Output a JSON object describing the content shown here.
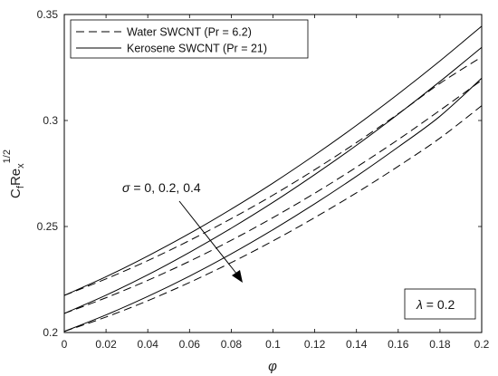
{
  "chart_data": {
    "type": "line",
    "xlabel": "φ",
    "ylabel": {
      "base": "C",
      "sub1": "f",
      "mid": "Re",
      "sub2": "x",
      "sup": "1/2"
    },
    "xlim": [
      0,
      0.2
    ],
    "ylim": [
      0.2,
      0.35
    ],
    "xticks": [
      "0",
      "0.02",
      "0.04",
      "0.06",
      "0.08",
      "0.1",
      "0.12",
      "0.14",
      "0.16",
      "0.18",
      "0.2"
    ],
    "yticks": [
      "0.2",
      "0.25",
      "0.3",
      "0.35"
    ],
    "grid": false,
    "legend": {
      "position": "top-left",
      "entries": [
        {
          "label": "Water SWCNT (Pr = 6.2)",
          "style": "dashed"
        },
        {
          "label": "Kerosene SWCNT (Pr = 21)",
          "style": "solid"
        }
      ]
    },
    "annotations": {
      "sigma": {
        "symbol": "σ",
        "text": " = 0, 0.2, 0.4"
      },
      "lambda": {
        "symbol": "λ",
        "text": " = 0.2"
      }
    },
    "x": [
      0,
      0.02,
      0.04,
      0.06,
      0.08,
      0.1,
      0.12,
      0.14,
      0.16,
      0.18,
      0.2
    ],
    "series": [
      {
        "style": "solid",
        "values": [
          0.2175,
          0.2263,
          0.2361,
          0.2467,
          0.2582,
          0.2705,
          0.2837,
          0.2977,
          0.3125,
          0.3281,
          0.3445
        ]
      },
      {
        "style": "dashed",
        "values": [
          0.2175,
          0.2253,
          0.2339,
          0.2434,
          0.2537,
          0.2648,
          0.2768,
          0.2896,
          0.3032,
          0.3175,
          0.33
        ]
      },
      {
        "style": "solid",
        "values": [
          0.209,
          0.2176,
          0.2272,
          0.2378,
          0.2492,
          0.2614,
          0.2745,
          0.2883,
          0.303,
          0.3184,
          0.3345
        ]
      },
      {
        "style": "dashed",
        "values": [
          0.209,
          0.2164,
          0.2246,
          0.2336,
          0.2435,
          0.2542,
          0.2657,
          0.278,
          0.291,
          0.3048,
          0.319
        ]
      },
      {
        "style": "solid",
        "values": [
          0.2005,
          0.2083,
          0.217,
          0.2266,
          0.2371,
          0.2485,
          0.2607,
          0.2737,
          0.2875,
          0.302,
          0.32
        ]
      },
      {
        "style": "dashed",
        "values": [
          0.2005,
          0.2073,
          0.215,
          0.2236,
          0.233,
          0.2432,
          0.2542,
          0.2659,
          0.2784,
          0.2917,
          0.307
        ]
      }
    ]
  }
}
